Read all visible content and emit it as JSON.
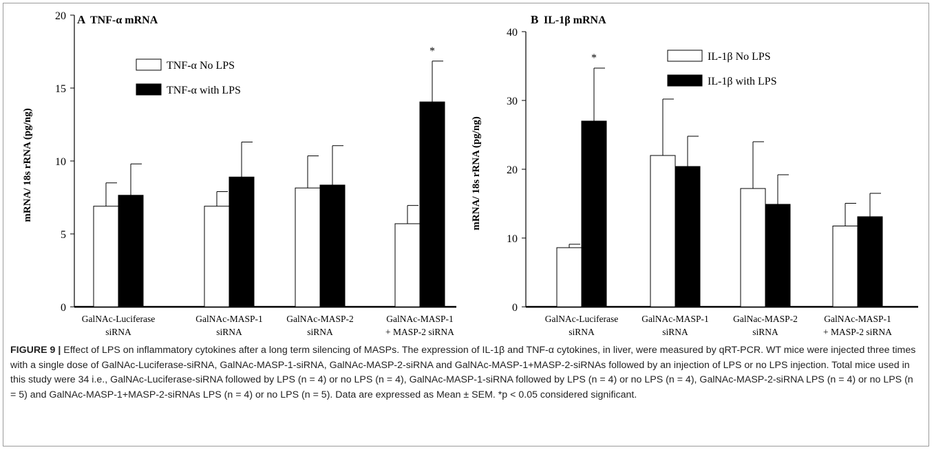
{
  "chart_data": [
    {
      "type": "bar",
      "panel_label": "A",
      "title": "TNF-α mRNA",
      "ylabel": "mRNA/ 18s rRNA (pg/ng)",
      "xlabel": "",
      "ylim": [
        0,
        20
      ],
      "yticks": [
        "0",
        "5",
        "10",
        "15",
        "20"
      ],
      "ytick_values": [
        0,
        5,
        10,
        15,
        20
      ],
      "categories": [
        [
          "GalNAc-Luciferase",
          "siRNA"
        ],
        [
          "GalNAc-MASP-1",
          "siRNA"
        ],
        [
          "GalNAc-MASP-2",
          "siRNA"
        ],
        [
          "GalNAc-MASP-1",
          "+ MASP-2 siRNA"
        ]
      ],
      "series": [
        {
          "name": "TNF-α No LPS",
          "color": "#ffffff",
          "values": [
            6.9,
            6.9,
            8.15,
            5.7
          ],
          "errors": [
            1.6,
            1.0,
            2.2,
            1.25
          ]
        },
        {
          "name": "TNF-α with LPS",
          "color": "#000000",
          "values": [
            7.65,
            8.9,
            8.35,
            14.05
          ],
          "errors": [
            2.15,
            2.4,
            2.7,
            2.8
          ]
        }
      ],
      "annotations": [
        {
          "text": "*",
          "category": 3,
          "series": 1
        }
      ],
      "legend_position": "top-center",
      "grid": false
    },
    {
      "type": "bar",
      "panel_label": "B",
      "title": "IL-1β mRNA",
      "ylabel": "mRNA/ 18s rRNA (pg/ng)",
      "xlabel": "",
      "ylim": [
        0,
        40
      ],
      "yticks": [
        "0",
        "10",
        "20",
        "30",
        "40"
      ],
      "ytick_values": [
        0,
        10,
        20,
        30,
        40
      ],
      "categories": [
        [
          "GalNAc-Luciferase",
          "siRNA"
        ],
        [
          "GalNAc-MASP-1",
          "siRNA"
        ],
        [
          "GalNac-MASP-2",
          "siRNA"
        ],
        [
          "GalNAc-MASP-1",
          "+ MASP-2 siRNA"
        ]
      ],
      "series": [
        {
          "name": "IL-1β No LPS",
          "color": "#ffffff",
          "values": [
            8.6,
            22.0,
            17.2,
            11.75
          ],
          "errors": [
            0.5,
            8.2,
            6.8,
            3.3
          ]
        },
        {
          "name": "IL-1β with LPS",
          "color": "#000000",
          "values": [
            27.0,
            20.4,
            14.9,
            13.1
          ],
          "errors": [
            7.7,
            4.4,
            4.3,
            3.4
          ]
        }
      ],
      "annotations": [
        {
          "text": "*",
          "category": 0,
          "series": 1
        }
      ],
      "legend_position": "top-right",
      "grid": false
    }
  ],
  "caption": {
    "label": "FIGURE 9 |",
    "text": " Effect of LPS on inflammatory cytokines after a long term silencing of MASPs. The expression of IL-1β and TNF-α cytokines, in liver, were measured by qRT-PCR. WT mice were injected three times with a single dose of GalNAc-Luciferase-siRNA, GalNAc-MASP-1-siRNA, GalNAc-MASP-2-siRNA and GalNAc-MASP-1+MASP-2-siRNAs followed by an injection of LPS or no LPS injection. Total mice used in this study were 34 i.e., GalNAc-Luciferase-siRNA followed by LPS (n = 4) or no LPS (n = 4), GalNAc-MASP-1-siRNA followed by LPS (n = 4) or no LPS (n = 4), GalNAc-MASP-2-siRNA LPS (n = 4) or no LPS (n = 5) and GalNAc-MASP-1+MASP-2-siRNAs LPS (n = 4) or no LPS (n = 5). Data are expressed as Mean ± SEM. *p < 0.05 considered significant."
  }
}
